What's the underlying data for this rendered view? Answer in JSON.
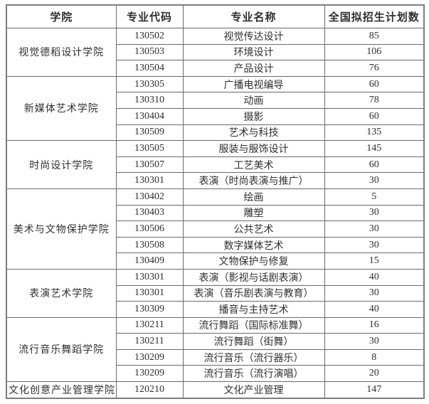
{
  "table": {
    "headers": [
      {
        "key": "college",
        "label": "学院"
      },
      {
        "key": "code",
        "label": "专业代码"
      },
      {
        "key": "name",
        "label": "专业名称"
      },
      {
        "key": "plan",
        "label": "全国拟招生计划数"
      }
    ],
    "groups": [
      {
        "college": "视觉德稻设计学院",
        "majors": [
          {
            "code": "130502",
            "name": "视觉传达设计",
            "plan": "85"
          },
          {
            "code": "130503",
            "name": "环境设计",
            "plan": "106"
          },
          {
            "code": "130504",
            "name": "产品设计",
            "plan": "76"
          }
        ]
      },
      {
        "college": "新媒体艺术学院",
        "majors": [
          {
            "code": "130305",
            "name": "广播电视编导",
            "plan": "60"
          },
          {
            "code": "130310",
            "name": "动画",
            "plan": "78"
          },
          {
            "code": "130404",
            "name": "摄影",
            "plan": "60"
          },
          {
            "code": "130509",
            "name": "艺术与科技",
            "plan": "135"
          }
        ]
      },
      {
        "college": "时尚设计学院",
        "majors": [
          {
            "code": "130505",
            "name": "服装与服饰设计",
            "plan": "145"
          },
          {
            "code": "130507",
            "name": "工艺美术",
            "plan": "60"
          },
          {
            "code": "130301",
            "name": "表演（时尚表演与推广）",
            "plan": "30"
          }
        ]
      },
      {
        "college": "美术与文物保护学院",
        "majors": [
          {
            "code": "130402",
            "name": "绘画",
            "plan": "5"
          },
          {
            "code": "130403",
            "name": "雕塑",
            "plan": "30"
          },
          {
            "code": "130506",
            "name": "公共艺术",
            "plan": "30"
          },
          {
            "code": "130508",
            "name": "数字媒体艺术",
            "plan": "30"
          },
          {
            "code": "130409",
            "name": "文物保护与修复",
            "plan": "15"
          }
        ]
      },
      {
        "college": "表演艺术学院",
        "majors": [
          {
            "code": "130301",
            "name": "表演（影视与话剧表演）",
            "plan": "40"
          },
          {
            "code": "130301",
            "name": "表演（音乐剧表演与教育）",
            "plan": "30"
          },
          {
            "code": "130309",
            "name": "播音与主持艺术",
            "plan": "40"
          }
        ]
      },
      {
        "college": "流行音乐舞蹈学院",
        "majors": [
          {
            "code": "130211",
            "name": "流行舞蹈（国际标准舞）",
            "plan": "16"
          },
          {
            "code": "130211",
            "name": "流行舞蹈（街舞）",
            "plan": "30"
          },
          {
            "code": "130209",
            "name": "流行音乐（流行器乐）",
            "plan": "8"
          },
          {
            "code": "130209",
            "name": "流行音乐（流行演唱）",
            "plan": "20"
          }
        ]
      },
      {
        "college": "文化创意产业管理学院",
        "majors": [
          {
            "code": "120210",
            "name": "文化产业管理",
            "plan": "147"
          }
        ]
      }
    ],
    "colors": {
      "border": "#6a6a6a",
      "text": "#2f2f2f",
      "background": "#ffffff"
    }
  }
}
